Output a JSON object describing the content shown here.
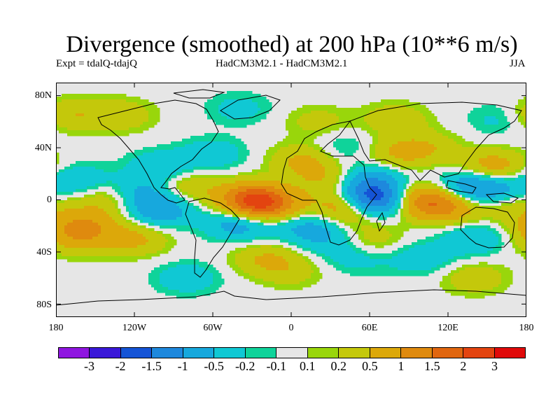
{
  "title": "Divergence (smoothed) at 200 hPa (10**6 m/s)",
  "experiment": "Expt = tdalQ-tdajQ",
  "models": "HadCM3M2.1 - HadCM3M2.1",
  "season": "JJA",
  "lat_axis": [
    "80N",
    "40N",
    "0",
    "40S",
    "80S"
  ],
  "lon_axis": [
    "180",
    "120W",
    "60W",
    "0",
    "60E",
    "120E",
    "180"
  ],
  "colorbar": {
    "labels": [
      "-3",
      "-2",
      "-1.5",
      "-1",
      "-0.5",
      "-0.2",
      "-0.1",
      "0.1",
      "0.2",
      "0.5",
      "1",
      "1.5",
      "2",
      "3"
    ],
    "colors": [
      "#8f16e0",
      "#3a18d8",
      "#1554d6",
      "#1e88dd",
      "#17a8dd",
      "#10c8d4",
      "#0fd39a",
      "#e6e6e6",
      "#99d60b",
      "#c4c80b",
      "#dca80a",
      "#df8a0e",
      "#e0660f",
      "#e34410",
      "#e00a0a"
    ]
  },
  "colors": {
    "background": "#e6e6e6",
    "coast": "#000000"
  },
  "chart_data": {
    "type": "heatmap",
    "title": "Divergence (smoothed) at 200 hPa (10**6 m/s)",
    "x_range": [
      -180,
      180
    ],
    "y_range": [
      -90,
      90
    ],
    "levels": [
      -3,
      -2,
      -1.5,
      -1,
      -0.5,
      -0.2,
      -0.1,
      0.1,
      0.2,
      0.5,
      1,
      1.5,
      2,
      3
    ],
    "blobs": [
      {
        "lon": 62,
        "lat": 0,
        "v": -2.2
      },
      {
        "lon": 60,
        "lat": 15,
        "v": -0.8
      },
      {
        "lon": 45,
        "lat": -5,
        "v": 1.3
      },
      {
        "lon": 100,
        "lat": 0,
        "v": 1.2
      },
      {
        "lon": 120,
        "lat": -5,
        "v": 0.9
      },
      {
        "lon": 130,
        "lat": 10,
        "v": -0.6
      },
      {
        "lon": 150,
        "lat": 8,
        "v": -0.9
      },
      {
        "lon": 165,
        "lat": -5,
        "v": 0.4
      },
      {
        "lon": 155,
        "lat": 25,
        "v": 0.8
      },
      {
        "lon": 140,
        "lat": -30,
        "v": -0.5
      },
      {
        "lon": -30,
        "lat": 0,
        "v": 1.8
      },
      {
        "lon": -15,
        "lat": -5,
        "v": 1.0
      },
      {
        "lon": -40,
        "lat": -18,
        "v": -0.8
      },
      {
        "lon": -100,
        "lat": -8,
        "v": -0.8
      },
      {
        "lon": -115,
        "lat": 5,
        "v": -0.6
      },
      {
        "lon": -160,
        "lat": -20,
        "v": 0.9
      },
      {
        "lon": -140,
        "lat": 0,
        "v": 0.5
      },
      {
        "lon": -165,
        "lat": 15,
        "v": -0.5
      },
      {
        "lon": -165,
        "lat": -30,
        "v": 0.5
      },
      {
        "lon": -120,
        "lat": -30,
        "v": 0.6
      },
      {
        "lon": -100,
        "lat": 25,
        "v": -0.5
      },
      {
        "lon": -80,
        "lat": 10,
        "v": 0.5
      },
      {
        "lon": -60,
        "lat": 35,
        "v": -0.4
      },
      {
        "lon": 10,
        "lat": -20,
        "v": -0.6
      },
      {
        "lon": 30,
        "lat": -30,
        "v": -0.4
      },
      {
        "lon": 60,
        "lat": -30,
        "v": 0.4
      },
      {
        "lon": 10,
        "lat": 30,
        "v": 0.6
      },
      {
        "lon": 30,
        "lat": 15,
        "v": 0.5
      },
      {
        "lon": 40,
        "lat": 40,
        "v": -0.3
      },
      {
        "lon": 80,
        "lat": 35,
        "v": 0.5
      },
      {
        "lon": 105,
        "lat": 40,
        "v": 0.4
      },
      {
        "lon": -20,
        "lat": -45,
        "v": 0.5
      },
      {
        "lon": 50,
        "lat": -45,
        "v": -0.3
      },
      {
        "lon": 100,
        "lat": -45,
        "v": -0.4
      },
      {
        "lon": -80,
        "lat": -60,
        "v": -0.4
      },
      {
        "lon": 0,
        "lat": -55,
        "v": 0.3
      },
      {
        "lon": 140,
        "lat": -60,
        "v": 0.4
      },
      {
        "lon": -170,
        "lat": 65,
        "v": 0.5
      },
      {
        "lon": -130,
        "lat": 65,
        "v": 0.4
      },
      {
        "lon": -40,
        "lat": 70,
        "v": -0.3
      },
      {
        "lon": 20,
        "lat": 60,
        "v": 0.3
      },
      {
        "lon": 80,
        "lat": 62,
        "v": 0.4
      },
      {
        "lon": 160,
        "lat": 62,
        "v": -0.3
      }
    ]
  }
}
